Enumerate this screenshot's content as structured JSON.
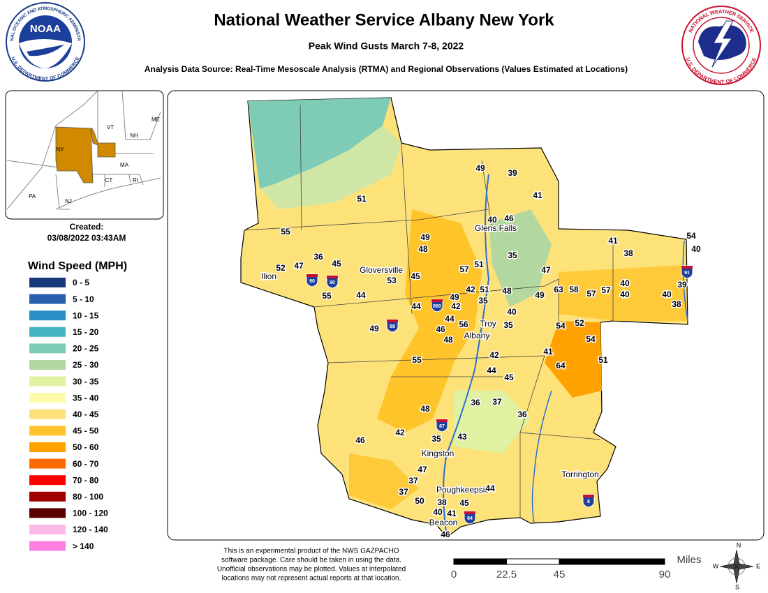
{
  "header": {
    "title": "National Weather Service Albany New York",
    "subtitle": "Peak Wind Gusts March 7-8, 2022",
    "source": "Analysis Data Source: Real-Time Mesoscale Analysis (RTMA) and Regional Observations (Values Estimated at Locations)"
  },
  "logos": {
    "noaa": {
      "name": "NOAA",
      "ring_top": "NATIONAL OCEANIC AND ATMOSPHERIC ADMINISTRATION",
      "ring_bottom": "U.S. DEPARTMENT OF COMMERCE"
    },
    "nws": {
      "ring_top": "NATIONAL WEATHER SERVICE",
      "ring_bottom": "U.S. DEPARTMENT OF COMMERCE"
    }
  },
  "inset": {
    "labels": [
      "ME",
      "VT",
      "NH",
      "NY",
      "MA",
      "CT",
      "RI",
      "PA",
      "NJ"
    ]
  },
  "created": {
    "label": "Created:",
    "timestamp": "03/08/2022 03:43AM"
  },
  "legend": {
    "title": "Wind Speed (MPH)",
    "items": [
      {
        "label": "0 - 5",
        "color": "#16397a"
      },
      {
        "label": "5 - 10",
        "color": "#2a5fb0"
      },
      {
        "label": "10 - 15",
        "color": "#2b8fc6"
      },
      {
        "label": "15 - 20",
        "color": "#47b4c6"
      },
      {
        "label": "20 - 25",
        "color": "#7ecbb6"
      },
      {
        "label": "25 - 30",
        "color": "#b3d89f"
      },
      {
        "label": "30 - 35",
        "color": "#e0f1a2"
      },
      {
        "label": "35 - 40",
        "color": "#fffaa9"
      },
      {
        "label": "40 - 45",
        "color": "#fde27a"
      },
      {
        "label": "45 - 50",
        "color": "#ffc42a"
      },
      {
        "label": "50 - 60",
        "color": "#ffa200"
      },
      {
        "label": "60 - 70",
        "color": "#ff6a00"
      },
      {
        "label": "70 - 80",
        "color": "#ff0000"
      },
      {
        "label": "80 - 100",
        "color": "#a00000"
      },
      {
        "label": "100 - 120",
        "color": "#5a0000"
      },
      {
        "label": "120 - 140",
        "color": "#ffb8ea"
      },
      {
        "label": "> 140",
        "color": "#ff80e0"
      }
    ]
  },
  "map": {
    "stations": [
      55,
      51,
      49,
      39,
      41,
      46,
      40,
      49,
      48,
      36,
      45,
      47,
      52,
      35,
      57,
      51,
      47,
      41,
      38,
      54,
      40,
      53,
      45,
      44,
      55,
      42,
      51,
      48,
      49,
      63,
      58,
      57,
      57,
      40,
      40,
      40,
      39,
      38,
      49,
      42,
      35,
      44,
      40,
      44,
      56,
      35,
      49,
      46,
      48,
      54,
      52,
      54,
      41,
      42,
      51,
      64,
      55,
      44,
      45,
      36,
      37,
      48,
      36,
      42,
      46,
      35,
      43,
      47,
      37,
      37,
      44,
      50,
      38,
      45,
      40,
      41,
      46
    ],
    "cities": [
      "Glens Falls",
      "Gloversville",
      "Ilion",
      "Troy",
      "Albany",
      "Kingston",
      "Poughkeepsie",
      "Beacon",
      "Torrington"
    ],
    "interstates": [
      "90",
      "90",
      "890",
      "88",
      "87",
      "84",
      "8",
      "91"
    ]
  },
  "disclaimer": [
    "This is an experimental product of the NWS GAZPACHO",
    "software package. Care should be taken in using the data.",
    "Unofficial observations may be plotted. Values at interpolated",
    "locations may not represent actual reports at that location."
  ],
  "scale": {
    "unit": "Miles",
    "ticks": [
      0,
      22.5,
      45,
      90
    ]
  },
  "compass": [
    "N",
    "E",
    "S",
    "W"
  ]
}
